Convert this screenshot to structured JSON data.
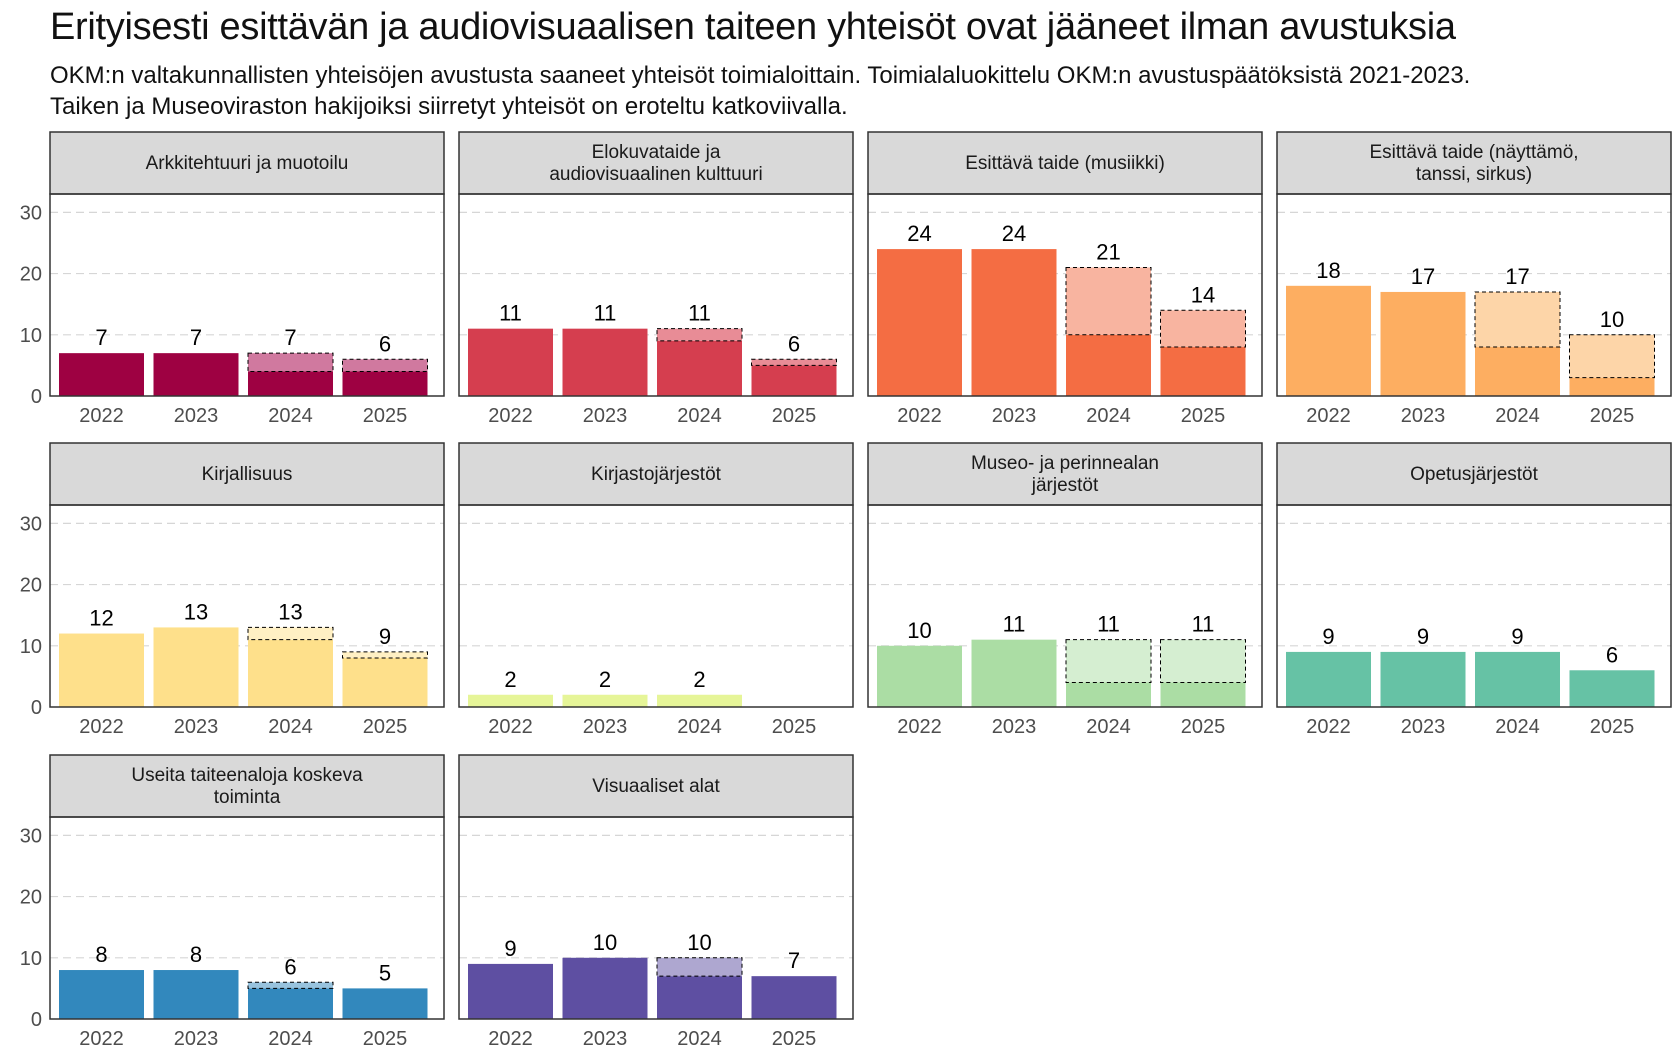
{
  "title": "Erityisesti esittävän ja audiovisuaalisen taiteen yhteisöt ovat jääneet ilman avustuksia",
  "subtitle_lines": [
    "OKM:n valtakunnallisten yhteisöjen avustusta saaneet yhteisöt toimialoittain. Toimialaluokittelu OKM:n avustuspäätöksistä 2021-2023.",
    "Taiken ja Museoviraston hakijoiksi siirretyt yhteisöt on eroteltu katkoviivalla."
  ],
  "chart_data": {
    "type": "bar",
    "facet": "small-multiples",
    "categories": [
      "2022",
      "2023",
      "2024",
      "2025"
    ],
    "ylim": [
      0,
      33
    ],
    "yticks": [
      0,
      10,
      20,
      30
    ],
    "value_meaning": "values = total bars; okm = portion remaining with OKM (solid); remainder shown dashed as transferred to Taike / Museovirasto",
    "panels": [
      {
        "label": [
          "Arkkitehtuuri ja muotoilu"
        ],
        "color": "#9e0142",
        "light": "#d0799f",
        "values": [
          7,
          7,
          7,
          6
        ],
        "okm": [
          7,
          7,
          4,
          4
        ]
      },
      {
        "label": [
          "Elokuvataide ja",
          "audiovisuaalinen kulttuuri"
        ],
        "color": "#d53e4f",
        "light": "#e88c96",
        "values": [
          11,
          11,
          11,
          6
        ],
        "okm": [
          11,
          11,
          9,
          5
        ]
      },
      {
        "label": [
          "Esittävä taide (musiikki)"
        ],
        "color": "#f46d43",
        "light": "#f8b4a0",
        "values": [
          24,
          24,
          21,
          14
        ],
        "okm": [
          24,
          24,
          10,
          8
        ]
      },
      {
        "label": [
          "Esittävä taide (näyttämö,",
          "tanssi, sirkus)"
        ],
        "color": "#fdae61",
        "light": "#fdd5a8",
        "values": [
          18,
          17,
          17,
          10
        ],
        "okm": [
          18,
          17,
          8,
          3
        ]
      },
      {
        "label": [
          "Kirjallisuus"
        ],
        "color": "#fee08b",
        "light": "#fff0c4",
        "values": [
          12,
          13,
          13,
          9
        ],
        "okm": [
          12,
          13,
          11,
          8
        ]
      },
      {
        "label": [
          "Kirjastojärjestöt"
        ],
        "color": "#e6f598",
        "light": "#f3fac9",
        "values": [
          2,
          2,
          2,
          null
        ],
        "okm": [
          2,
          2,
          2,
          null
        ]
      },
      {
        "label": [
          "Museo- ja perinnealan",
          "järjestöt"
        ],
        "color": "#abdda4",
        "light": "#d5eed1",
        "values": [
          10,
          11,
          11,
          11
        ],
        "okm": [
          10,
          11,
          4,
          4
        ]
      },
      {
        "label": [
          "Opetusjärjestöt"
        ],
        "color": "#66c2a5",
        "light": "#b2e0d2",
        "values": [
          9,
          9,
          9,
          6
        ],
        "okm": [
          9,
          9,
          9,
          6
        ]
      },
      {
        "label": [
          "Useita taiteenaloja koskeva",
          "toiminta"
        ],
        "color": "#3288bd",
        "light": "#98c3de",
        "values": [
          8,
          8,
          6,
          5
        ],
        "okm": [
          8,
          8,
          5,
          5
        ]
      },
      {
        "label": [
          "Visuaaliset alat"
        ],
        "color": "#5e4fa2",
        "light": "#aea7d0",
        "values": [
          9,
          10,
          10,
          7
        ],
        "okm": [
          9,
          10,
          7,
          7
        ]
      }
    ]
  }
}
